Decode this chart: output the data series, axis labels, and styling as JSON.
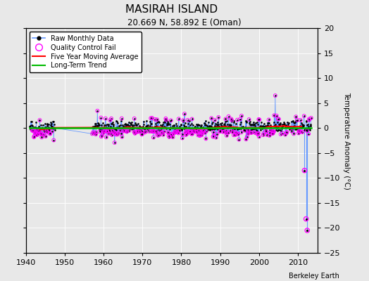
{
  "title": "MASIRAH ISLAND",
  "subtitle": "20.669 N, 58.892 E (Oman)",
  "ylabel": "Temperature Anomaly (°C)",
  "credit": "Berkeley Earth",
  "xlim": [
    1940,
    2015
  ],
  "ylim": [
    -25,
    20
  ],
  "yticks": [
    -25,
    -20,
    -15,
    -10,
    -5,
    0,
    5,
    10,
    15,
    20
  ],
  "xticks": [
    1940,
    1950,
    1960,
    1970,
    1980,
    1990,
    2000,
    2010
  ],
  "bg_color": "#e8e8e8",
  "plot_bg_color": "#d8d8d8",
  "grid_color": "#ffffff",
  "raw_color": "#6699ff",
  "raw_dot_color": "#000000",
  "ma_color": "#ff0000",
  "trend_color": "#00bb00",
  "qc_color": "#ff00ff",
  "seed": 42,
  "start_year": 1941.0,
  "end_year": 2013.5,
  "gap_start_year": 1947.5,
  "gap_end_year": 1957.0,
  "outlier1_year": 2011.7,
  "outlier1_val": -8.5,
  "outlier2_year": 2012.1,
  "outlier2_val": -18.2,
  "outlier3_year": 2012.4,
  "outlier3_val": -20.5,
  "spike_year": 2004.2,
  "spike_val": 6.5,
  "legend_labels": [
    "Raw Monthly Data",
    "Quality Control Fail",
    "Five Year Moving Average",
    "Long-Term Trend"
  ]
}
